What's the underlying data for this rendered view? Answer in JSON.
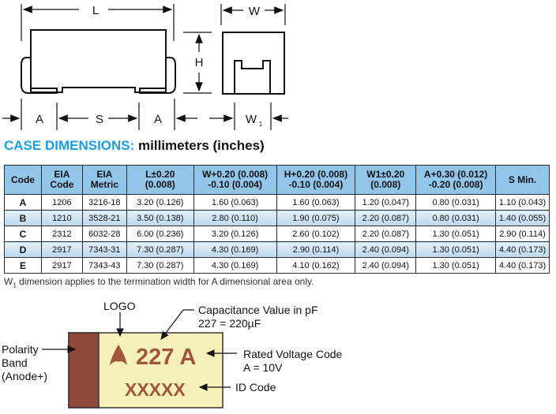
{
  "drawing": {
    "labels": {
      "L": "L",
      "W": "W",
      "H": "H",
      "A_left": "A",
      "S": "S",
      "A_right": "A",
      "W1": "W",
      "W1_sub": "1"
    }
  },
  "title": {
    "highlight": "CASE DIMENSIONS:",
    "rest": " millimeters (inches)"
  },
  "table": {
    "headers": [
      [
        "Code"
      ],
      [
        "EIA",
        "Code"
      ],
      [
        "EIA",
        "Metric"
      ],
      [
        "L±0.20",
        "(0.008)"
      ],
      [
        "W+0.20 (0.008)",
        "-0.10 (0.004)"
      ],
      [
        "H+0.20 (0.008)",
        "-0.10 (0.004)"
      ],
      [
        "W1±0.20",
        "(0.008)"
      ],
      [
        "A+0.30 (0.012)",
        "-0.20 (0.008)"
      ],
      [
        "S Min."
      ]
    ],
    "rows": [
      [
        "A",
        "1206",
        "3216-18",
        "3.20 (0.126)",
        "1.60 (0.063)",
        "1.60 (0.063)",
        "1.20 (0.047)",
        "0.80 (0.031)",
        "1.10 (0.043)"
      ],
      [
        "B",
        "1210",
        "3528-21",
        "3.50 (0.138)",
        "2.80 (0.110)",
        "1.90 (0.075)",
        "2.20 (0.087)",
        "0.80 (0.031)",
        "1.40 (0.055)"
      ],
      [
        "C",
        "2312",
        "6032-28",
        "6.00 (0.236)",
        "3.20 (0.126)",
        "2.60 (0.102)",
        "2.20 (0.087)",
        "1.30 (0.051)",
        "2.90 (0.114)"
      ],
      [
        "D",
        "2917",
        "7343-31",
        "7.30 (0.287)",
        "4.30 (0.169)",
        "2.90 (0.114)",
        "2.40 (0.094)",
        "1.30 (0.051)",
        "4.40 (0.173)"
      ],
      [
        "E",
        "2917",
        "7343-43",
        "7.30 (0.287)",
        "4.30 (0.169)",
        "4.10 (0.162)",
        "2.40 (0.094)",
        "1.30 (0.051)",
        "4.40 (0.173)"
      ]
    ]
  },
  "note": {
    "prefix": "W",
    "sub": "1",
    "text": " dimension applies to the termination width for A dimensional area only."
  },
  "marking": {
    "logo_label": "LOGO",
    "cap_label_1": "Capacitance Value in pF",
    "cap_label_2": "227 = 220µF",
    "polarity_1": "Polarity",
    "polarity_2": "Band",
    "polarity_3": "(Anode+)",
    "marking_text": "227 A",
    "id_text": "XXXXX",
    "voltage_1": "Rated Voltage Code",
    "voltage_2": "A = 10V",
    "id_label": "ID Code",
    "colors": {
      "band": "#8e4a38",
      "body": "#f6f1b9",
      "ink": "#a1553b"
    }
  }
}
